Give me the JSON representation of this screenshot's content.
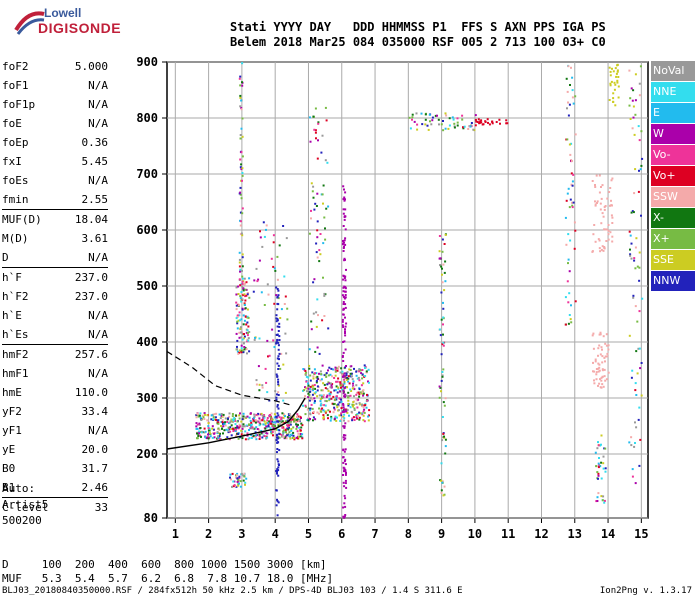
{
  "logo": {
    "line1": "Lowell",
    "line2": "DIGISONDE"
  },
  "header": {
    "labels": "Stati YYYY DAY   DDD HHMMSS P1  FFS S AXN PPS IGA PS",
    "values": "Belem 2018 Mar25 084 035000 RSF 005 2 713 100 03+ C0"
  },
  "params": [
    {
      "label": "foF2",
      "value": "5.000"
    },
    {
      "label": "foF1",
      "value": "N/A"
    },
    {
      "label": "foF1p",
      "value": "N/A"
    },
    {
      "label": "foE",
      "value": "N/A"
    },
    {
      "label": "foEp",
      "value": "0.36"
    },
    {
      "label": "fxI",
      "value": "5.45"
    },
    {
      "label": "foEs",
      "value": "N/A"
    },
    {
      "label": "fmin",
      "value": "2.55"
    },
    {
      "label": "MUF(D)",
      "value": "18.04"
    },
    {
      "label": "M(D)",
      "value": "3.61"
    },
    {
      "label": "D",
      "value": "N/A"
    },
    {
      "label": "h`F",
      "value": "237.0"
    },
    {
      "label": "h`F2",
      "value": "237.0"
    },
    {
      "label": "h`E",
      "value": "N/A"
    },
    {
      "label": "h`Es",
      "value": "N/A"
    },
    {
      "label": "hmF2",
      "value": "257.6"
    },
    {
      "label": "hmF1",
      "value": "N/A"
    },
    {
      "label": "hmE",
      "value": "110.0"
    },
    {
      "label": "yF2",
      "value": "33.4"
    },
    {
      "label": "yF1",
      "value": "N/A"
    },
    {
      "label": "yE",
      "value": "20.0"
    },
    {
      "label": "B0",
      "value": "31.7"
    },
    {
      "label": "B1",
      "value": "2.46"
    },
    {
      "label": "C-level",
      "value": "33"
    }
  ],
  "auto": [
    "Auto:",
    "Artist5",
    "500200"
  ],
  "legend": [
    {
      "label": "NoVal",
      "color": "#999999"
    },
    {
      "label": "NNE",
      "color": "#33ddee"
    },
    {
      "label": "E",
      "color": "#22bbee"
    },
    {
      "label": "W",
      "color": "#aa00aa"
    },
    {
      "label": "Vo-",
      "color": "#ee3399"
    },
    {
      "label": "Vo+",
      "color": "#dd0022"
    },
    {
      "label": "SSW",
      "color": "#f4aaaa"
    },
    {
      "label": "X-",
      "color": "#117711"
    },
    {
      "label": "X+",
      "color": "#77bb44"
    },
    {
      "label": "SSE",
      "color": "#cccc22"
    },
    {
      "label": "NNW",
      "color": "#2222bb"
    }
  ],
  "chart_data": {
    "type": "scatter",
    "title": "",
    "xlabel": "",
    "ylabel": "",
    "x_ticks": [
      1,
      2,
      3,
      4,
      5,
      6,
      7,
      8,
      9,
      10,
      11,
      12,
      13,
      14,
      15
    ],
    "y_ticks": [
      80,
      200,
      300,
      400,
      500,
      600,
      700,
      800,
      900
    ],
    "xlim": [
      0.75,
      15.2
    ],
    "grid": true,
    "profile_curve": [
      [
        0.75,
        209
      ],
      [
        2,
        220
      ],
      [
        3,
        232
      ],
      [
        4,
        245
      ],
      [
        4.4,
        258
      ],
      [
        4.7,
        280
      ],
      [
        4.9,
        300
      ]
    ],
    "dashed_curve": [
      [
        0.75,
        383
      ],
      [
        1.5,
        355
      ],
      [
        2.2,
        322
      ],
      [
        3,
        305
      ],
      [
        4,
        295
      ],
      [
        4.5,
        287
      ]
    ]
  },
  "muf": {
    "d_line": "D     100  200  400  600  800 1000 1500 3000 [km]",
    "muf_line": "MUF   5.3  5.4  5.7  6.2  6.8  7.8 10.7 18.0 [MHz]"
  },
  "footer": "BLJ03_20180840350000.RSF / 284fx512h 50 kHz 2.5 km / DPS-4D BLJ03 103 / 1.4 S 311.6 E",
  "version": "Ion2Png v. 1.3.17"
}
